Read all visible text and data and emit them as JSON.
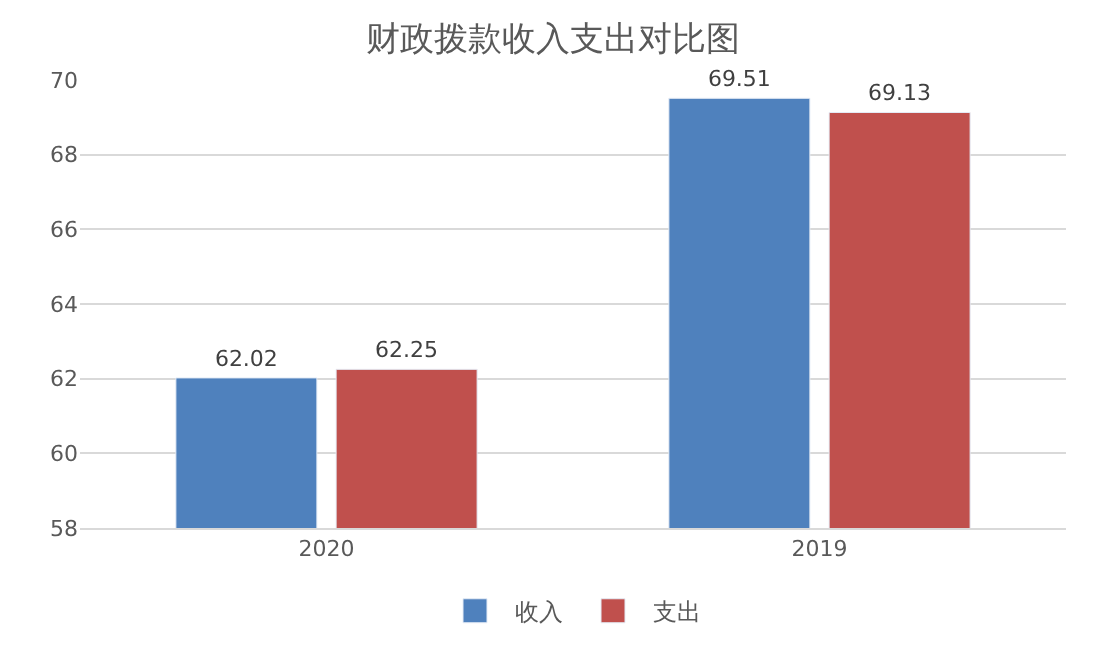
{
  "chart_data": {
    "type": "bar",
    "title": "财政拨款收入支出对比图",
    "categories": [
      "2020",
      "2019"
    ],
    "series": [
      {
        "name": "收入",
        "color": "#4f81bd",
        "values": [
          62.02,
          69.51
        ]
      },
      {
        "name": "支出",
        "color": "#c0504d",
        "values": [
          62.25,
          69.13
        ]
      }
    ],
    "ylim": [
      58,
      70
    ],
    "yticks": [
      58,
      60,
      62,
      64,
      66,
      68,
      70
    ],
    "grid": "y",
    "legend": "bottom",
    "data_labels": true
  }
}
